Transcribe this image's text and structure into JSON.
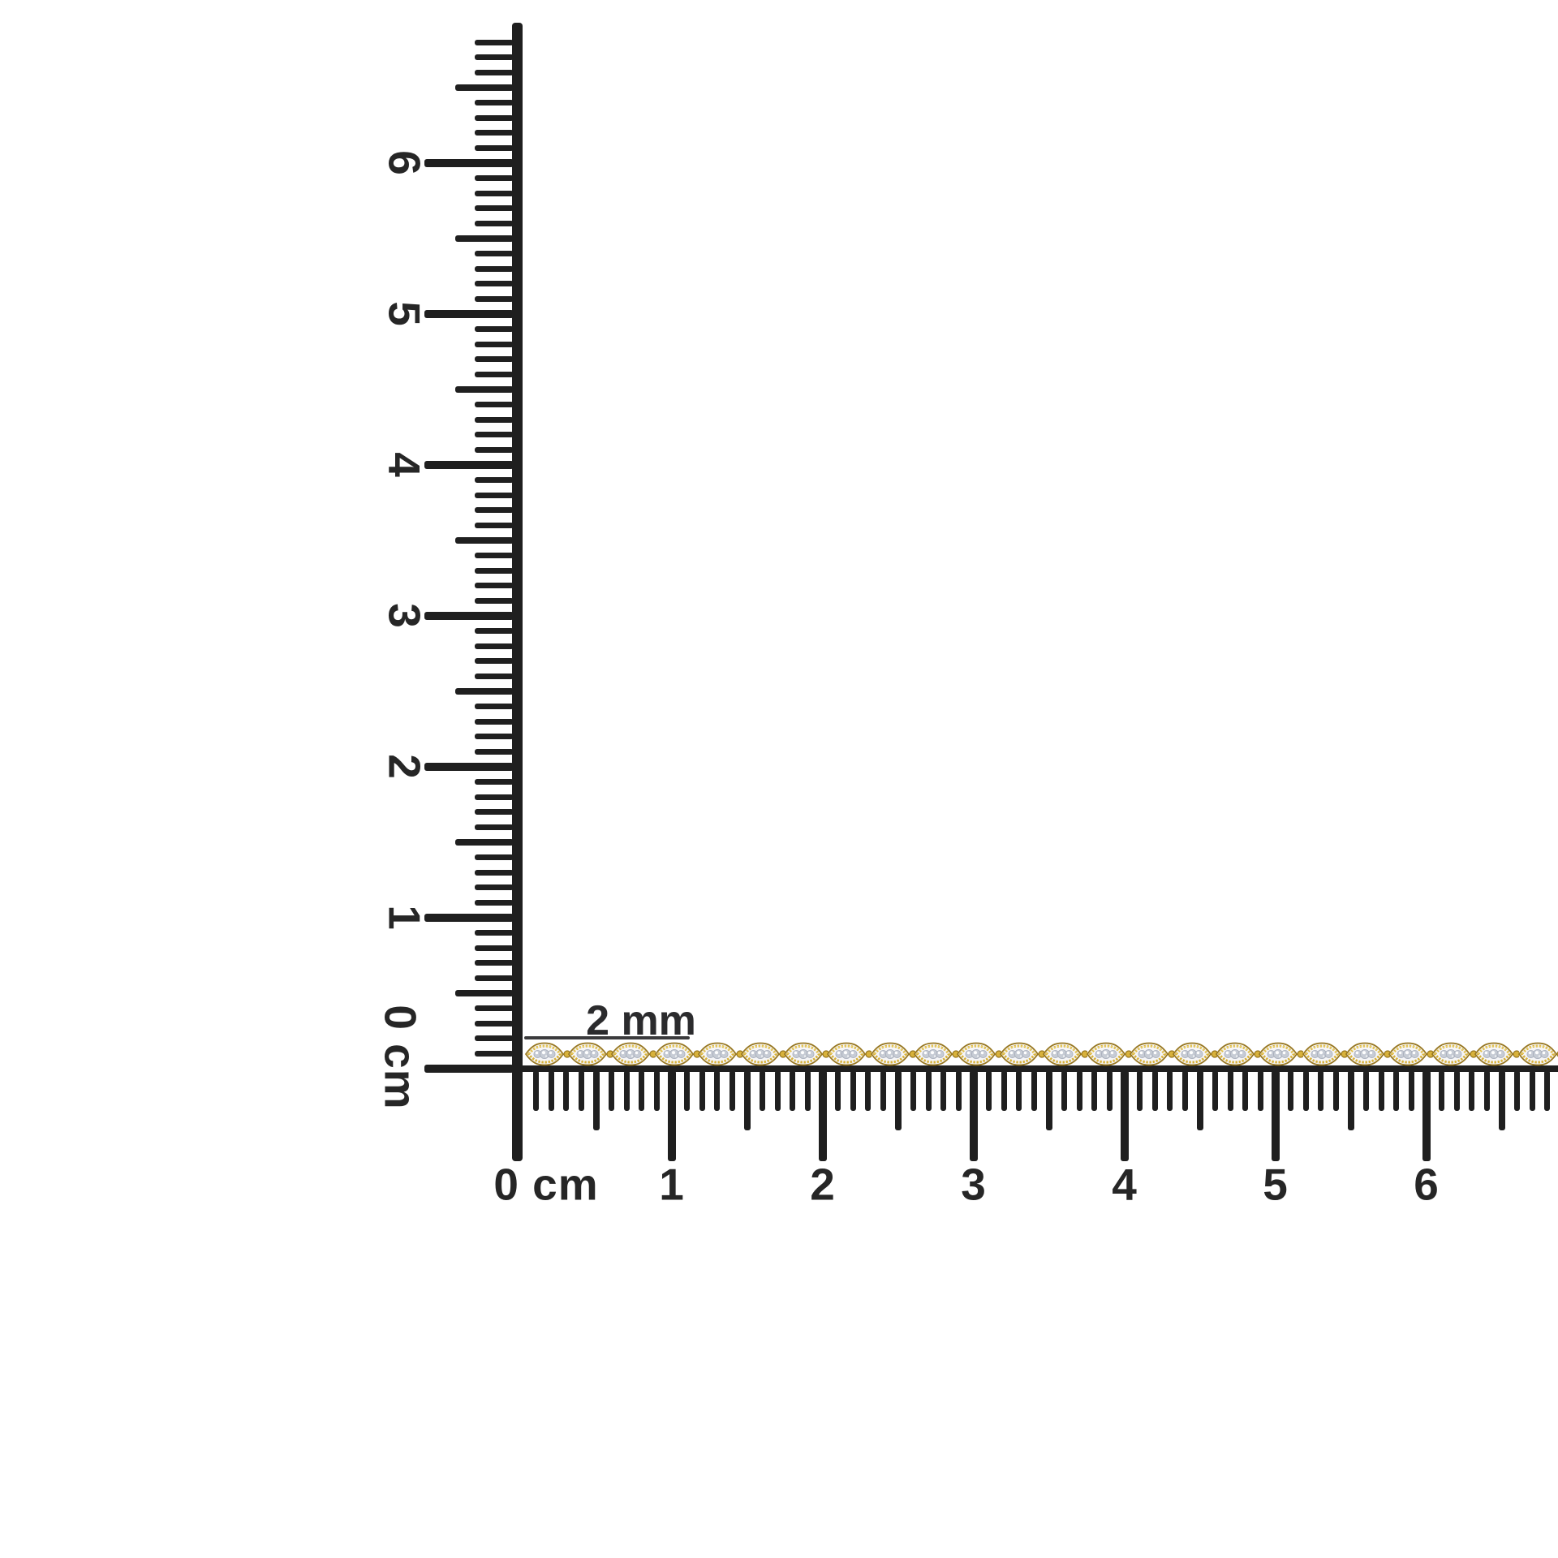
{
  "scene": {
    "description": "Yellow gold diamond-link bracelet photographed against centimeter rulers",
    "background_color": "#ffffff"
  },
  "annotation": {
    "text": "2 mm"
  },
  "rulers": {
    "ink_color": "#1f1f1f",
    "label_color": "#262626",
    "horizontal": {
      "origin_label": "0 cm",
      "cm_labels": [
        "1",
        "2",
        "3",
        "4",
        "5",
        "6"
      ]
    },
    "vertical": {
      "origin_label": "0 cm",
      "cm_labels": [
        "1",
        "2",
        "3",
        "4",
        "5",
        "6"
      ]
    }
  },
  "chain": {
    "link_count": 24,
    "diamonds_per_link": 3,
    "colors": {
      "gold": "#d8b23b",
      "gold_dark": "#97761f",
      "gold_light": "#f0d878",
      "interior": "#f6f6f8",
      "diamond": "#c7ccd5",
      "diamond_shade": "#a7adba",
      "diamond_highlight": "#ffffff"
    }
  }
}
